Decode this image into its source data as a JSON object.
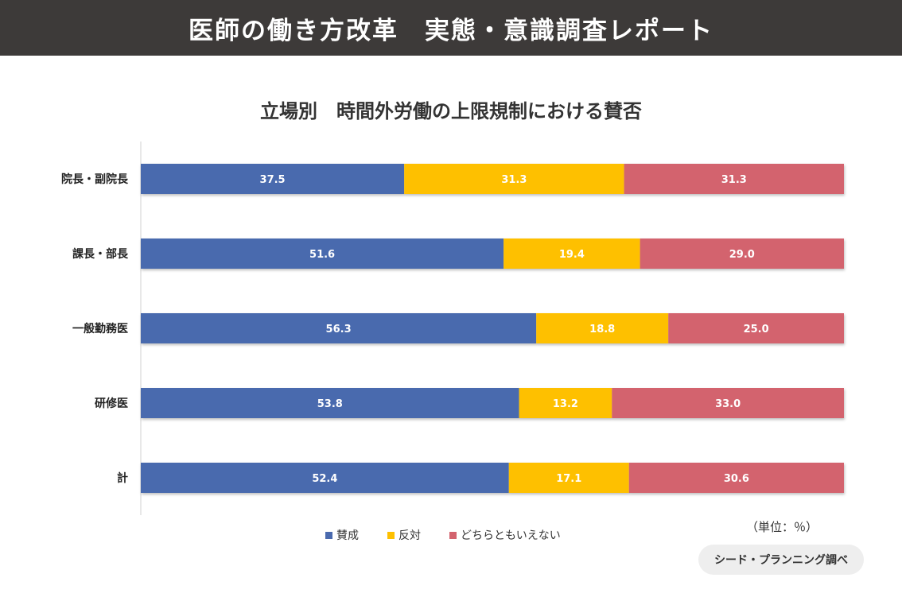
{
  "header": {
    "title": "医師の働き方改革　実態・意識調査レポート"
  },
  "chart_data": {
    "type": "bar",
    "orientation": "horizontal",
    "stacked": true,
    "title": "立場別　時間外労働の上限規制における賛否",
    "categories": [
      "院長・副院長",
      "課長・部長",
      "一般勤務医",
      "研修医",
      "計"
    ],
    "series": [
      {
        "name": "賛成",
        "color": "#4a6aae",
        "values": [
          37.5,
          51.6,
          56.3,
          53.8,
          52.4
        ]
      },
      {
        "name": "反対",
        "color": "#fec000",
        "values": [
          31.3,
          19.4,
          18.8,
          13.2,
          17.1
        ]
      },
      {
        "name": "どちらともいえない",
        "color": "#d3636e",
        "values": [
          31.3,
          29.0,
          25.0,
          33.0,
          30.6
        ]
      }
    ],
    "xlim": [
      0,
      100
    ],
    "legend_position": "bottom-center",
    "unit_label": "（単位：％）"
  },
  "footer": {
    "source": "シード・プランニング調べ"
  }
}
